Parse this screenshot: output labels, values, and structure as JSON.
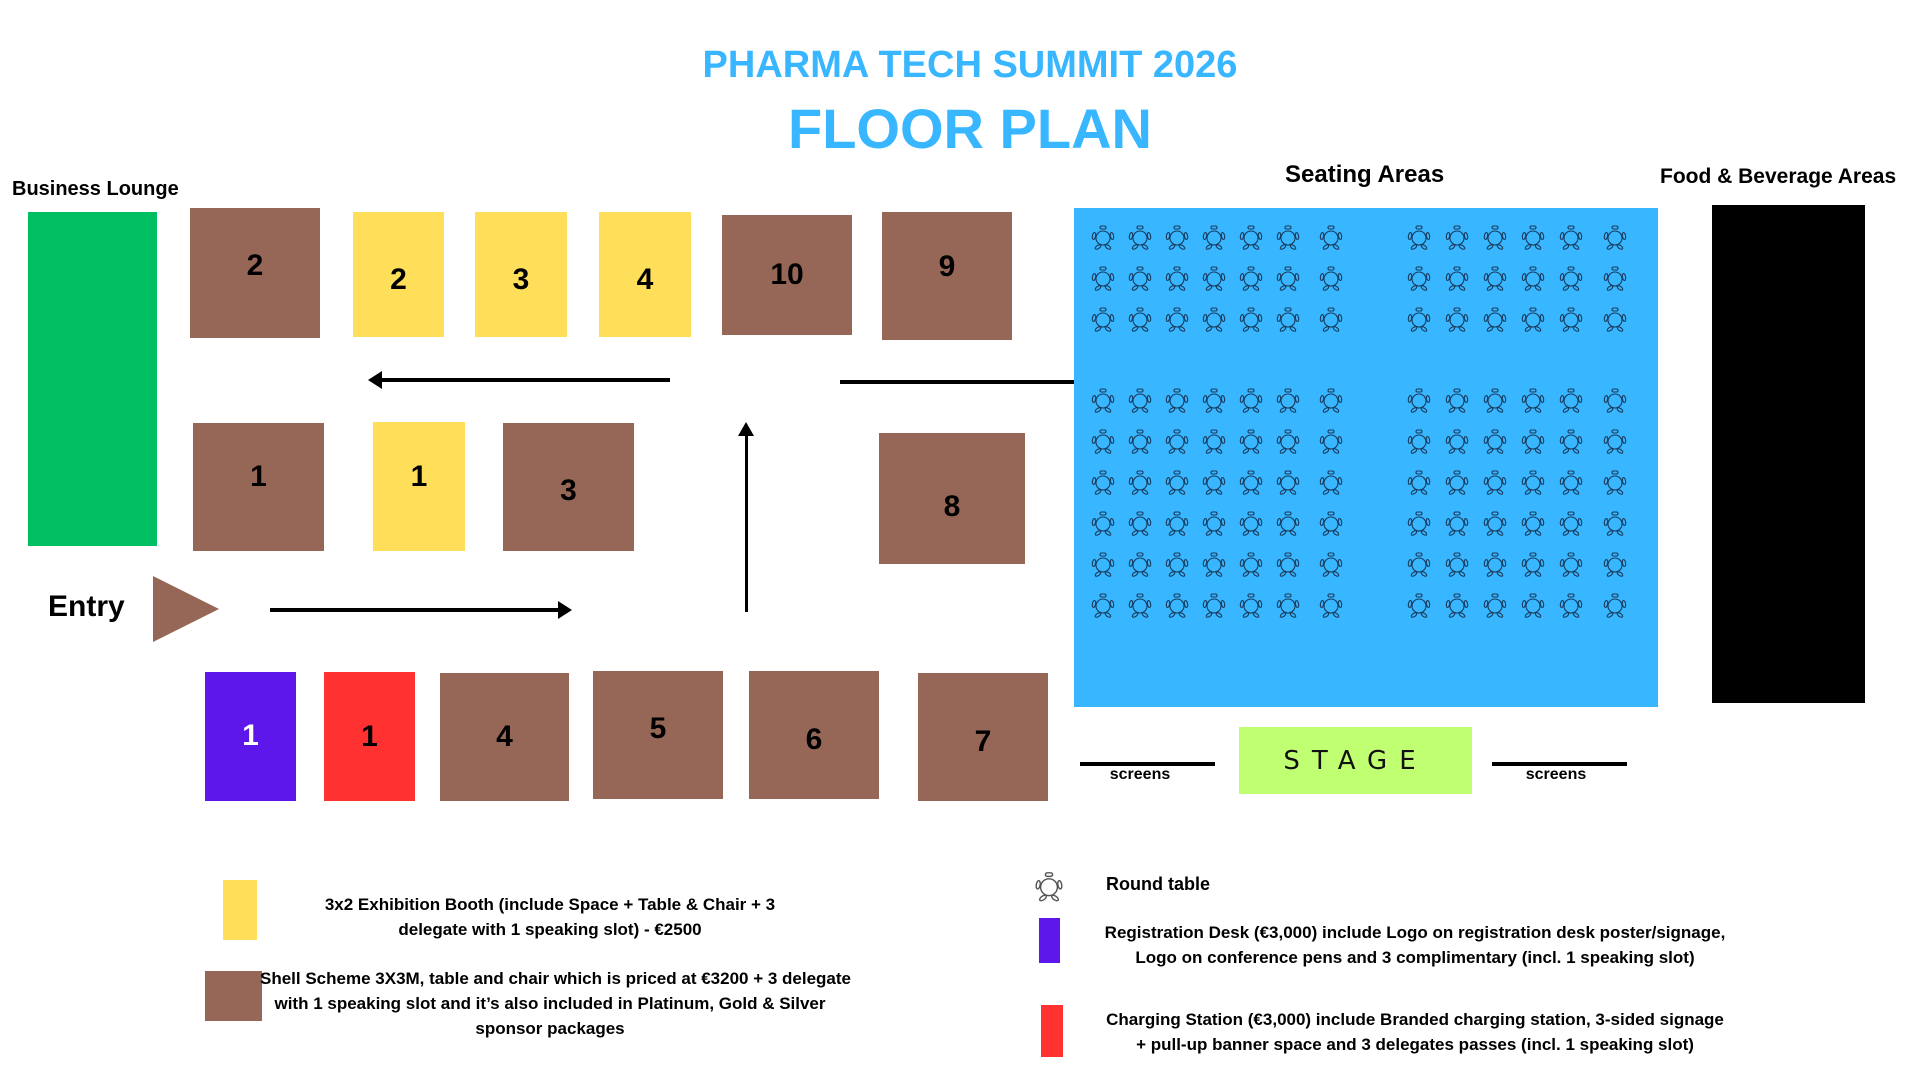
{
  "header": {
    "event_title": "PHARMA TECH SUMMIT 2026",
    "plan_title": "FLOOR PLAN"
  },
  "areas": {
    "business_lounge": "Business Lounge",
    "seating": "Seating Areas",
    "food_beverage": "Food & Beverage Areas",
    "entry": "Entry",
    "stage": "STAGE",
    "screens_left": "screens",
    "screens_right": "screens"
  },
  "booths": {
    "top_row": [
      {
        "type": "shell",
        "label": "2"
      },
      {
        "type": "exhibition",
        "label": "2"
      },
      {
        "type": "exhibition",
        "label": "3"
      },
      {
        "type": "exhibition",
        "label": "4"
      },
      {
        "type": "shell",
        "label": "10"
      },
      {
        "type": "shell",
        "label": "9"
      }
    ],
    "middle_row": [
      {
        "type": "shell",
        "label": "1"
      },
      {
        "type": "exhibition",
        "label": "1"
      },
      {
        "type": "shell",
        "label": "3"
      },
      {
        "type": "shell",
        "label": "8"
      }
    ],
    "bottom_row": [
      {
        "type": "registration",
        "label": "1"
      },
      {
        "type": "charging",
        "label": "1"
      },
      {
        "type": "shell",
        "label": "4"
      },
      {
        "type": "shell",
        "label": "5"
      },
      {
        "type": "shell",
        "label": "6"
      },
      {
        "type": "shell",
        "label": "7"
      }
    ]
  },
  "seating_layout": {
    "left_block": {
      "rows": 9,
      "tables_per_row": 7
    },
    "right_block": {
      "rows": 9,
      "tables_per_row": 6
    },
    "total_round_tables": 117
  },
  "legend": {
    "exhibition_booth": "3x2 Exhibition Booth (include Space + Table & Chair + 3 delegate with 1 speaking slot) - €2500",
    "exhibition_booth_line1": "3x2 Exhibition Booth (include Space + Table & Chair + 3",
    "exhibition_booth_line2": "delegate with 1 speaking slot) - €2500",
    "shell_scheme_line1": "Shell Scheme 3X3M, table and chair which is priced at €3200 + 3 delegate",
    "shell_scheme_line2": "with 1 speaking slot and it’s also  included in Platinum, Gold & Silver",
    "shell_scheme_line3": "sponsor packages",
    "round_table": "Round table",
    "registration_line1": "Registration Desk (€3,000) include Logo on registration desk poster/signage,",
    "registration_line2": "Logo on conference pens and 3 complimentary (incl. 1 speaking slot)",
    "charging_line1": "Charging Station (€3,000) include Branded charging station, 3-sided signage",
    "charging_line2": "+ pull-up banner space and 3 delegates passes (incl. 1 speaking slot)"
  },
  "colors": {
    "title": "#38b6ff",
    "shell_scheme": "#966656",
    "exhibition_booth": "#ffde59",
    "registration_desk": "#5e17eb",
    "charging_station": "#ff3131",
    "business_lounge": "#00bf63",
    "seating_area": "#38b6ff",
    "food_beverage": "#000000",
    "stage": "#c1ff72"
  }
}
